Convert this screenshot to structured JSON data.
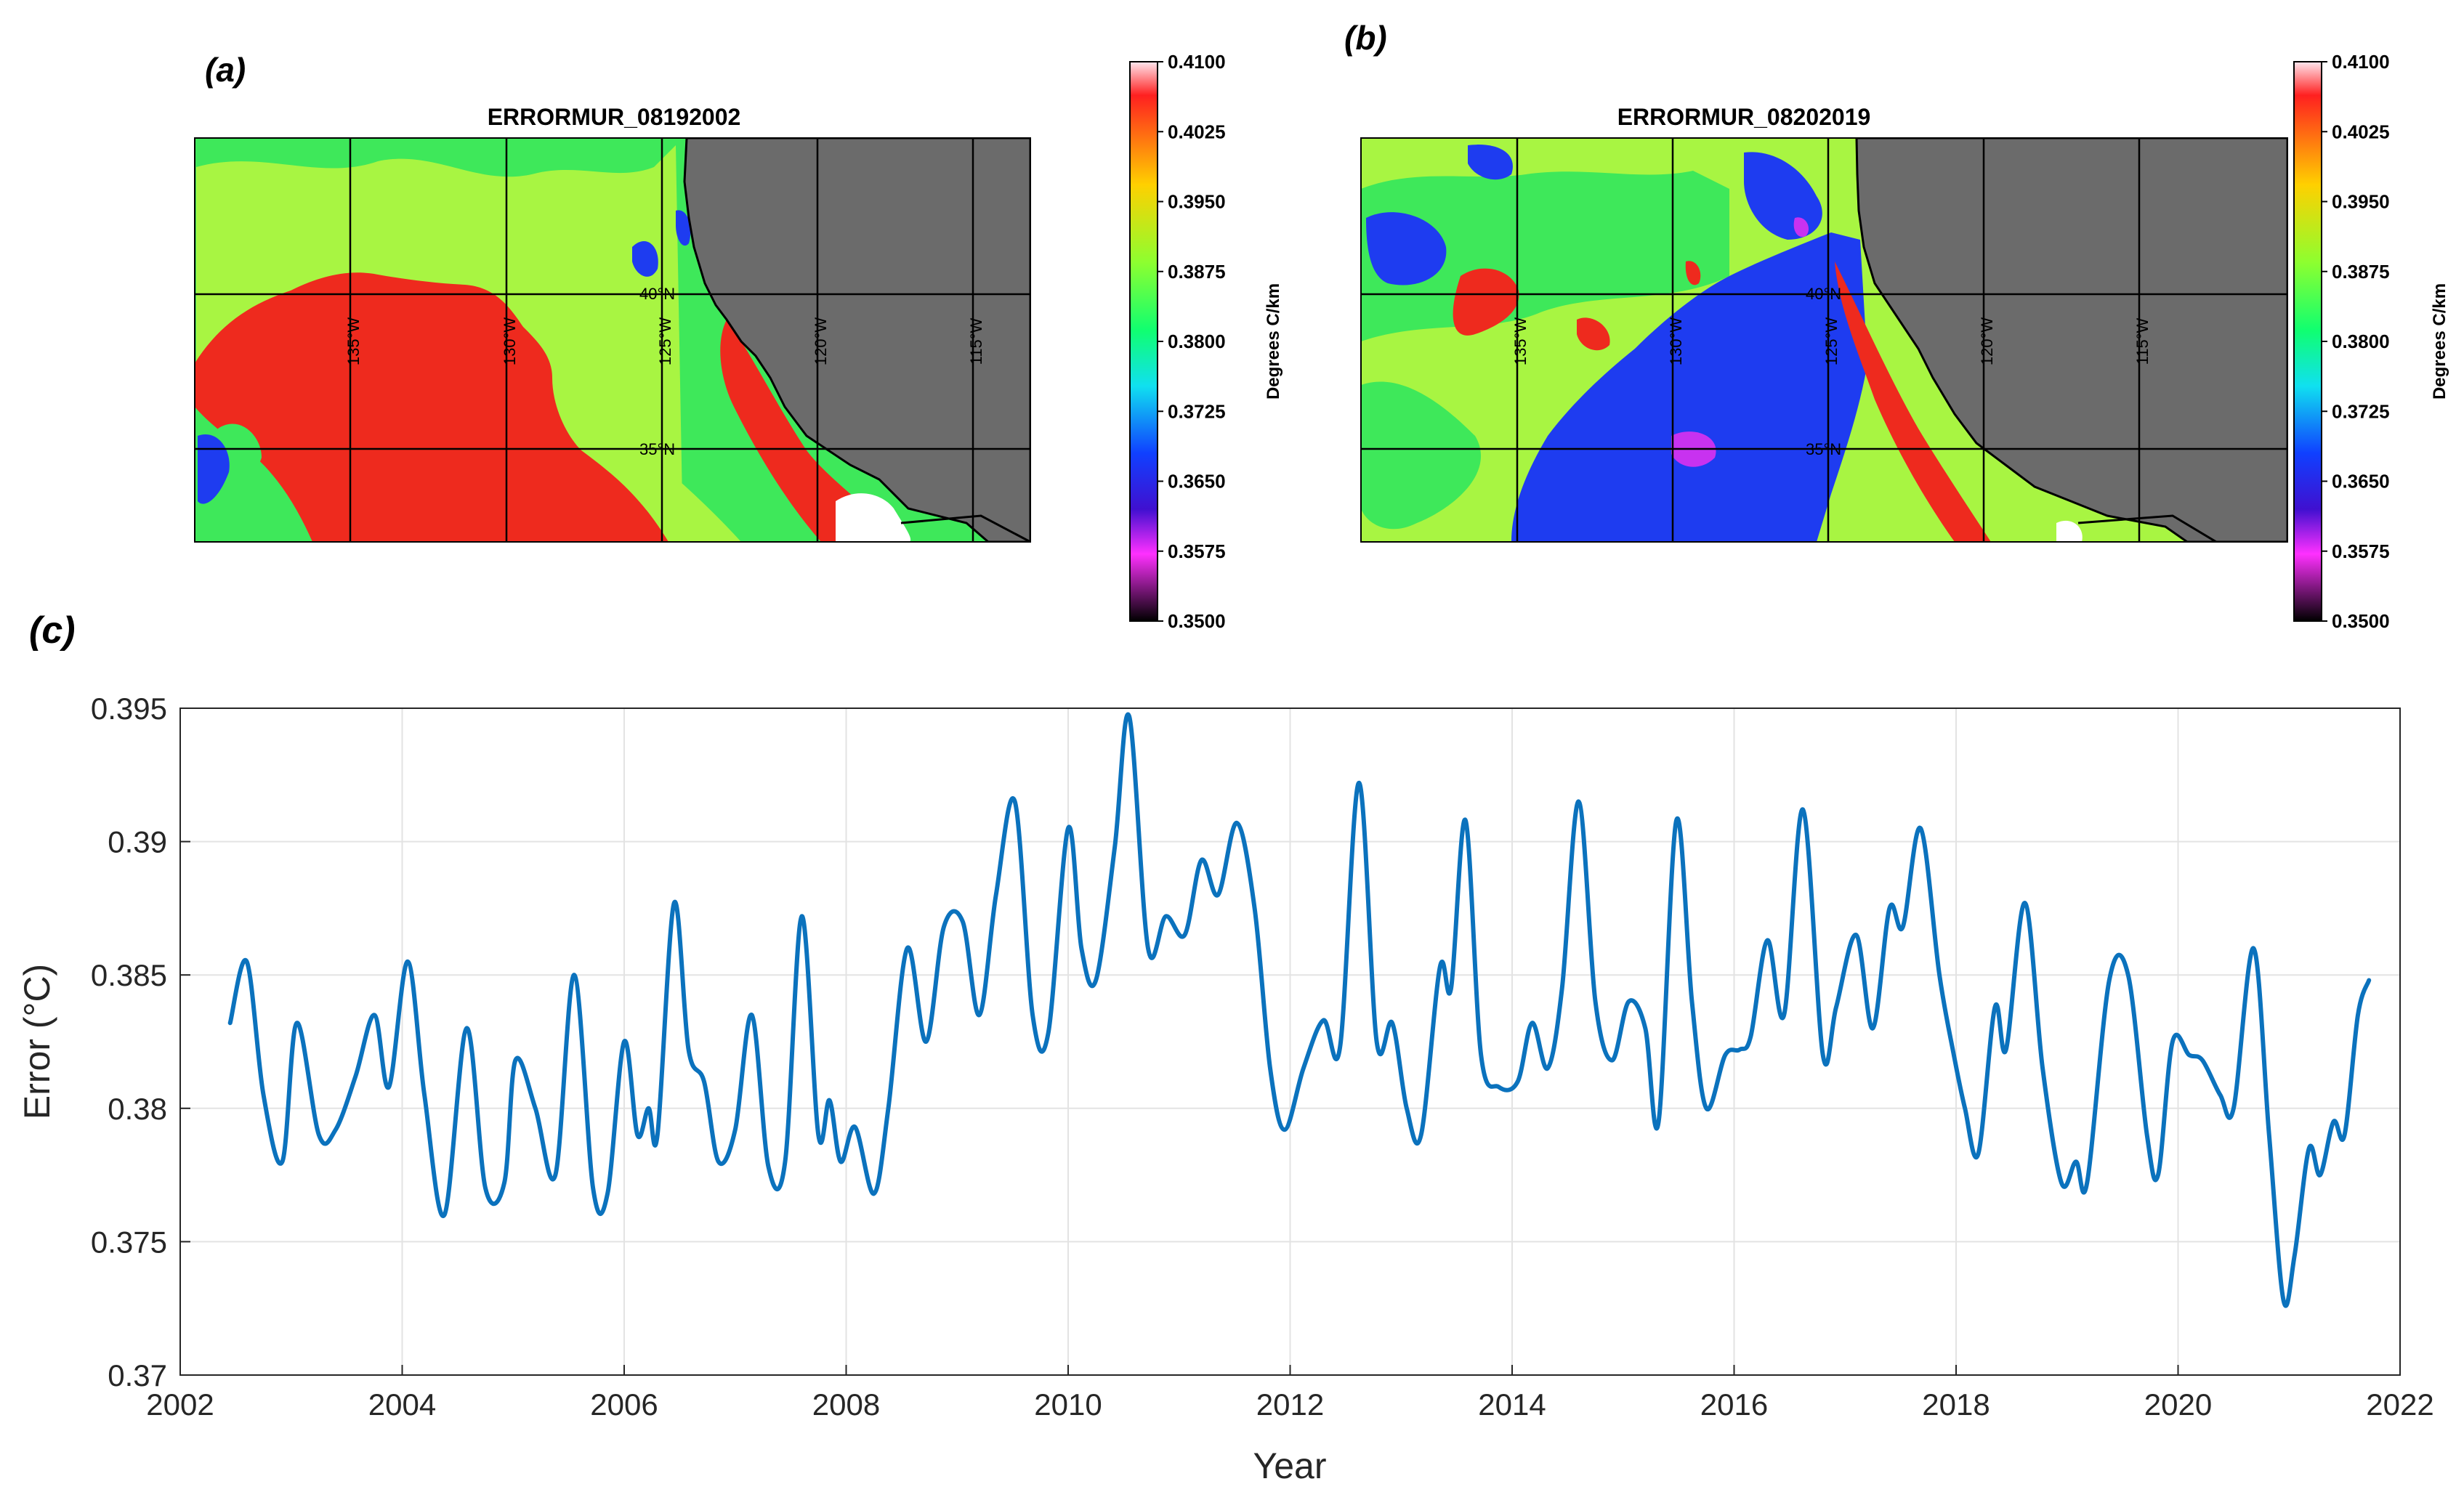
{
  "panels": {
    "a": {
      "letter": "(a)",
      "title": "ERRORMUR_08192002",
      "lon_labels": [
        "135°W",
        "130°W",
        "125°W",
        "120°W",
        "115°W"
      ],
      "lat_labels": [
        "40°N",
        "35°N"
      ]
    },
    "b": {
      "letter": "(b)",
      "title": "ERRORMUR_08202019",
      "lon_labels": [
        "135°W",
        "130°W",
        "125°W",
        "120°W",
        "115°W"
      ],
      "lat_labels": [
        "40°N",
        "35°N"
      ]
    },
    "c": {
      "letter": "(c)"
    }
  },
  "colorbar": {
    "label": "Degrees C/km",
    "ticks": [
      "0.4100",
      "0.4025",
      "0.3950",
      "0.3875",
      "0.3800",
      "0.3725",
      "0.3650",
      "0.3575",
      "0.3500"
    ],
    "colors": [
      "#ffe6ee",
      "#ff2020",
      "#ffd000",
      "#8cff30",
      "#10ff70",
      "#10e0f0",
      "#1040ff",
      "#4010d0",
      "#ff30ff",
      "#000000"
    ]
  },
  "colors": {
    "series": "#0b72bd",
    "land": "#6b6b6b",
    "map_red": "#ee2a1e",
    "map_lightgreen": "#a8f542",
    "map_green": "#3ee85a",
    "map_blue": "#1e3cf0",
    "map_magenta": "#c832f0"
  },
  "chart_data": {
    "type": "line",
    "title": "",
    "xlabel": "Year",
    "ylabel": "Error (°C)",
    "xlim": [
      2002,
      2022
    ],
    "ylim": [
      0.37,
      0.395
    ],
    "xticks": [
      "2002",
      "2004",
      "2006",
      "2008",
      "2010",
      "2012",
      "2014",
      "2016",
      "2018",
      "2020",
      "2022"
    ],
    "yticks": [
      "0.37",
      "0.375",
      "0.38",
      "0.385",
      "0.39",
      "0.395"
    ],
    "grid": true,
    "series": [
      {
        "name": "Error",
        "points": [
          [
            2002.45,
            0.3832
          ],
          [
            2002.6,
            0.3855
          ],
          [
            2002.75,
            0.3805
          ],
          [
            2002.92,
            0.378
          ],
          [
            2003.05,
            0.3832
          ],
          [
            2003.25,
            0.379
          ],
          [
            2003.4,
            0.3792
          ],
          [
            2003.58,
            0.3812
          ],
          [
            2003.75,
            0.3835
          ],
          [
            2003.88,
            0.3808
          ],
          [
            2004.05,
            0.3855
          ],
          [
            2004.2,
            0.3805
          ],
          [
            2004.38,
            0.376
          ],
          [
            2004.58,
            0.383
          ],
          [
            2004.75,
            0.377
          ],
          [
            2004.92,
            0.3772
          ],
          [
            2005.02,
            0.3818
          ],
          [
            2005.2,
            0.38
          ],
          [
            2005.38,
            0.3775
          ],
          [
            2005.55,
            0.385
          ],
          [
            2005.72,
            0.377
          ],
          [
            2005.85,
            0.3768
          ],
          [
            2006.0,
            0.3825
          ],
          [
            2006.12,
            0.379
          ],
          [
            2006.22,
            0.38
          ],
          [
            2006.3,
            0.379
          ],
          [
            2006.45,
            0.3877
          ],
          [
            2006.58,
            0.3822
          ],
          [
            2006.72,
            0.381
          ],
          [
            2006.85,
            0.378
          ],
          [
            2007.0,
            0.3792
          ],
          [
            2007.15,
            0.3835
          ],
          [
            2007.3,
            0.3778
          ],
          [
            2007.45,
            0.378
          ],
          [
            2007.6,
            0.3872
          ],
          [
            2007.75,
            0.379
          ],
          [
            2007.85,
            0.3803
          ],
          [
            2007.95,
            0.378
          ],
          [
            2008.08,
            0.3793
          ],
          [
            2008.25,
            0.3768
          ],
          [
            2008.38,
            0.38
          ],
          [
            2008.55,
            0.386
          ],
          [
            2008.72,
            0.3825
          ],
          [
            2008.88,
            0.3868
          ],
          [
            2009.05,
            0.387
          ],
          [
            2009.2,
            0.3835
          ],
          [
            2009.35,
            0.388
          ],
          [
            2009.52,
            0.3915
          ],
          [
            2009.68,
            0.3835
          ],
          [
            2009.82,
            0.3828
          ],
          [
            2010.0,
            0.3905
          ],
          [
            2010.12,
            0.386
          ],
          [
            2010.25,
            0.3848
          ],
          [
            2010.42,
            0.3898
          ],
          [
            2010.55,
            0.3947
          ],
          [
            2010.72,
            0.386
          ],
          [
            2010.88,
            0.3872
          ],
          [
            2011.05,
            0.3865
          ],
          [
            2011.2,
            0.3893
          ],
          [
            2011.35,
            0.388
          ],
          [
            2011.52,
            0.3907
          ],
          [
            2011.68,
            0.3875
          ],
          [
            2011.82,
            0.3815
          ],
          [
            2011.95,
            0.3792
          ],
          [
            2012.12,
            0.3815
          ],
          [
            2012.3,
            0.3833
          ],
          [
            2012.45,
            0.3823
          ],
          [
            2012.62,
            0.3922
          ],
          [
            2012.78,
            0.3825
          ],
          [
            2012.92,
            0.3832
          ],
          [
            2013.05,
            0.38
          ],
          [
            2013.18,
            0.379
          ],
          [
            2013.35,
            0.3853
          ],
          [
            2013.45,
            0.3845
          ],
          [
            2013.58,
            0.3908
          ],
          [
            2013.72,
            0.382
          ],
          [
            2013.88,
            0.3808
          ],
          [
            2014.05,
            0.381
          ],
          [
            2014.18,
            0.3832
          ],
          [
            2014.32,
            0.3815
          ],
          [
            2014.45,
            0.3845
          ],
          [
            2014.6,
            0.3915
          ],
          [
            2014.75,
            0.384
          ],
          [
            2014.9,
            0.3818
          ],
          [
            2015.05,
            0.384
          ],
          [
            2015.2,
            0.383
          ],
          [
            2015.32,
            0.3795
          ],
          [
            2015.48,
            0.3908
          ],
          [
            2015.62,
            0.384
          ],
          [
            2015.75,
            0.38
          ],
          [
            2015.92,
            0.382
          ],
          [
            2016.05,
            0.3822
          ],
          [
            2016.15,
            0.3827
          ],
          [
            2016.3,
            0.3863
          ],
          [
            2016.45,
            0.3835
          ],
          [
            2016.62,
            0.3912
          ],
          [
            2016.8,
            0.382
          ],
          [
            2016.92,
            0.3838
          ],
          [
            2017.1,
            0.3865
          ],
          [
            2017.25,
            0.383
          ],
          [
            2017.4,
            0.3875
          ],
          [
            2017.52,
            0.3868
          ],
          [
            2017.68,
            0.3905
          ],
          [
            2017.85,
            0.385
          ],
          [
            2017.98,
            0.382
          ],
          [
            2018.08,
            0.38
          ],
          [
            2018.2,
            0.3783
          ],
          [
            2018.35,
            0.3838
          ],
          [
            2018.45,
            0.3822
          ],
          [
            2018.62,
            0.3877
          ],
          [
            2018.78,
            0.3815
          ],
          [
            2018.95,
            0.3772
          ],
          [
            2019.08,
            0.378
          ],
          [
            2019.18,
            0.3772
          ],
          [
            2019.38,
            0.3848
          ],
          [
            2019.55,
            0.385
          ],
          [
            2019.72,
            0.379
          ],
          [
            2019.82,
            0.3775
          ],
          [
            2019.95,
            0.3825
          ],
          [
            2020.1,
            0.382
          ],
          [
            2020.22,
            0.3818
          ],
          [
            2020.38,
            0.3805
          ],
          [
            2020.5,
            0.38
          ],
          [
            2020.68,
            0.386
          ],
          [
            2020.82,
            0.379
          ],
          [
            2020.95,
            0.3728
          ],
          [
            2021.05,
            0.3745
          ],
          [
            2021.18,
            0.3785
          ],
          [
            2021.28,
            0.3775
          ],
          [
            2021.4,
            0.3795
          ],
          [
            2021.5,
            0.379
          ],
          [
            2021.62,
            0.3835
          ],
          [
            2021.72,
            0.3848
          ]
        ]
      }
    ]
  }
}
